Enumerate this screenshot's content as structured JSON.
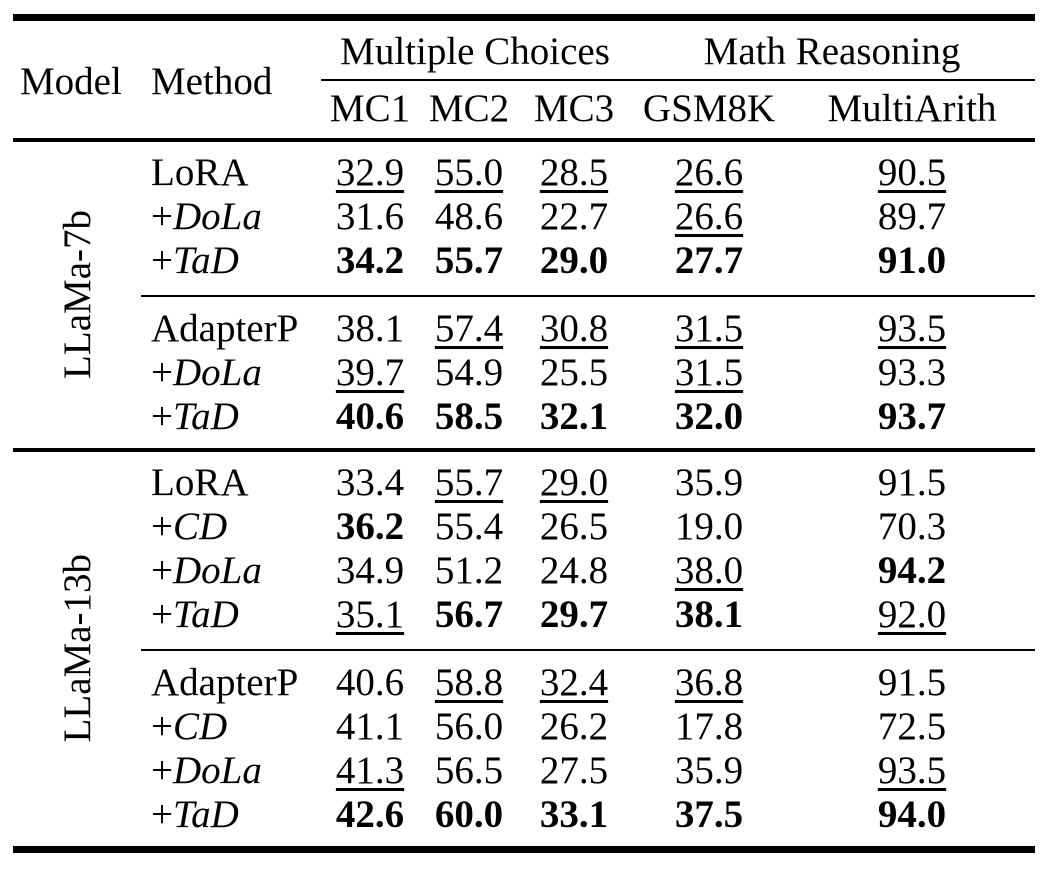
{
  "table": {
    "headers": {
      "model": "Model",
      "method": "Method",
      "group1": "Multiple Choices",
      "group2": "Math Reasoning",
      "cols": [
        "MC1",
        "MC2",
        "MC3",
        "GSM8K",
        "MultiArith"
      ]
    },
    "groups": [
      {
        "model": "LLaMa-7b",
        "sections": [
          {
            "rows": [
              {
                "method": {
                  "prefix": "",
                  "name": "LoRA",
                  "fmt": ""
                },
                "values": [
                  {
                    "v": "32.9",
                    "fmt": "u"
                  },
                  {
                    "v": "55.0",
                    "fmt": "u"
                  },
                  {
                    "v": "28.5",
                    "fmt": "u"
                  },
                  {
                    "v": "26.6",
                    "fmt": "u"
                  },
                  {
                    "v": "90.5",
                    "fmt": "u"
                  }
                ]
              },
              {
                "method": {
                  "prefix": "+",
                  "name": "DoLa",
                  "fmt": "it"
                },
                "values": [
                  {
                    "v": "31.6",
                    "fmt": ""
                  },
                  {
                    "v": "48.6",
                    "fmt": ""
                  },
                  {
                    "v": "22.7",
                    "fmt": ""
                  },
                  {
                    "v": "26.6",
                    "fmt": "u"
                  },
                  {
                    "v": "89.7",
                    "fmt": ""
                  }
                ]
              },
              {
                "method": {
                  "prefix": "+",
                  "name": "TaD",
                  "fmt": "it"
                },
                "values": [
                  {
                    "v": "34.2",
                    "fmt": "b"
                  },
                  {
                    "v": "55.7",
                    "fmt": "b"
                  },
                  {
                    "v": "29.0",
                    "fmt": "b"
                  },
                  {
                    "v": "27.7",
                    "fmt": "b"
                  },
                  {
                    "v": "91.0",
                    "fmt": "b"
                  }
                ]
              }
            ]
          },
          {
            "rows": [
              {
                "method": {
                  "prefix": "",
                  "name": "AdapterP",
                  "fmt": ""
                },
                "values": [
                  {
                    "v": "38.1",
                    "fmt": ""
                  },
                  {
                    "v": "57.4",
                    "fmt": "u"
                  },
                  {
                    "v": "30.8",
                    "fmt": "u"
                  },
                  {
                    "v": "31.5",
                    "fmt": "u"
                  },
                  {
                    "v": "93.5",
                    "fmt": "u"
                  }
                ]
              },
              {
                "method": {
                  "prefix": "+",
                  "name": "DoLa",
                  "fmt": "it"
                },
                "values": [
                  {
                    "v": "39.7",
                    "fmt": "u"
                  },
                  {
                    "v": "54.9",
                    "fmt": ""
                  },
                  {
                    "v": "25.5",
                    "fmt": ""
                  },
                  {
                    "v": "31.5",
                    "fmt": "u"
                  },
                  {
                    "v": "93.3",
                    "fmt": ""
                  }
                ]
              },
              {
                "method": {
                  "prefix": "+",
                  "name": "TaD",
                  "fmt": "it"
                },
                "values": [
                  {
                    "v": "40.6",
                    "fmt": "b"
                  },
                  {
                    "v": "58.5",
                    "fmt": "b"
                  },
                  {
                    "v": "32.1",
                    "fmt": "b"
                  },
                  {
                    "v": "32.0",
                    "fmt": "b"
                  },
                  {
                    "v": "93.7",
                    "fmt": "b"
                  }
                ]
              }
            ]
          }
        ]
      },
      {
        "model": "LLaMa-13b",
        "sections": [
          {
            "rows": [
              {
                "method": {
                  "prefix": "",
                  "name": "LoRA",
                  "fmt": ""
                },
                "values": [
                  {
                    "v": "33.4",
                    "fmt": ""
                  },
                  {
                    "v": "55.7",
                    "fmt": "u"
                  },
                  {
                    "v": "29.0",
                    "fmt": "u"
                  },
                  {
                    "v": "35.9",
                    "fmt": ""
                  },
                  {
                    "v": "91.5",
                    "fmt": ""
                  }
                ]
              },
              {
                "method": {
                  "prefix": "+",
                  "name": "CD",
                  "fmt": "it"
                },
                "values": [
                  {
                    "v": "36.2",
                    "fmt": "b"
                  },
                  {
                    "v": "55.4",
                    "fmt": ""
                  },
                  {
                    "v": "26.5",
                    "fmt": ""
                  },
                  {
                    "v": "19.0",
                    "fmt": ""
                  },
                  {
                    "v": "70.3",
                    "fmt": ""
                  }
                ]
              },
              {
                "method": {
                  "prefix": "+",
                  "name": "DoLa",
                  "fmt": "it"
                },
                "values": [
                  {
                    "v": "34.9",
                    "fmt": ""
                  },
                  {
                    "v": "51.2",
                    "fmt": ""
                  },
                  {
                    "v": "24.8",
                    "fmt": ""
                  },
                  {
                    "v": "38.0",
                    "fmt": "u"
                  },
                  {
                    "v": "94.2",
                    "fmt": "b"
                  }
                ]
              },
              {
                "method": {
                  "prefix": "+",
                  "name": "TaD",
                  "fmt": "it"
                },
                "values": [
                  {
                    "v": "35.1",
                    "fmt": "u"
                  },
                  {
                    "v": "56.7",
                    "fmt": "b"
                  },
                  {
                    "v": "29.7",
                    "fmt": "b"
                  },
                  {
                    "v": "38.1",
                    "fmt": "b"
                  },
                  {
                    "v": "92.0",
                    "fmt": "u"
                  }
                ]
              }
            ]
          },
          {
            "rows": [
              {
                "method": {
                  "prefix": "",
                  "name": "AdapterP",
                  "fmt": ""
                },
                "values": [
                  {
                    "v": "40.6",
                    "fmt": ""
                  },
                  {
                    "v": "58.8",
                    "fmt": "u"
                  },
                  {
                    "v": "32.4",
                    "fmt": "u"
                  },
                  {
                    "v": "36.8",
                    "fmt": "u"
                  },
                  {
                    "v": "91.5",
                    "fmt": ""
                  }
                ]
              },
              {
                "method": {
                  "prefix": "+",
                  "name": "CD",
                  "fmt": "it"
                },
                "values": [
                  {
                    "v": "41.1",
                    "fmt": ""
                  },
                  {
                    "v": "56.0",
                    "fmt": ""
                  },
                  {
                    "v": "26.2",
                    "fmt": ""
                  },
                  {
                    "v": "17.8",
                    "fmt": ""
                  },
                  {
                    "v": "72.5",
                    "fmt": ""
                  }
                ]
              },
              {
                "method": {
                  "prefix": "+",
                  "name": "DoLa",
                  "fmt": "it"
                },
                "values": [
                  {
                    "v": "41.3",
                    "fmt": "u"
                  },
                  {
                    "v": "56.5",
                    "fmt": ""
                  },
                  {
                    "v": "27.5",
                    "fmt": ""
                  },
                  {
                    "v": "35.9",
                    "fmt": ""
                  },
                  {
                    "v": "93.5",
                    "fmt": "u"
                  }
                ]
              },
              {
                "method": {
                  "prefix": "+",
                  "name": "TaD",
                  "fmt": "it"
                },
                "values": [
                  {
                    "v": "42.6",
                    "fmt": "b"
                  },
                  {
                    "v": "60.0",
                    "fmt": "b"
                  },
                  {
                    "v": "33.1",
                    "fmt": "b"
                  },
                  {
                    "v": "37.5",
                    "fmt": "b"
                  },
                  {
                    "v": "94.0",
                    "fmt": "b"
                  }
                ]
              }
            ]
          }
        ]
      }
    ]
  }
}
